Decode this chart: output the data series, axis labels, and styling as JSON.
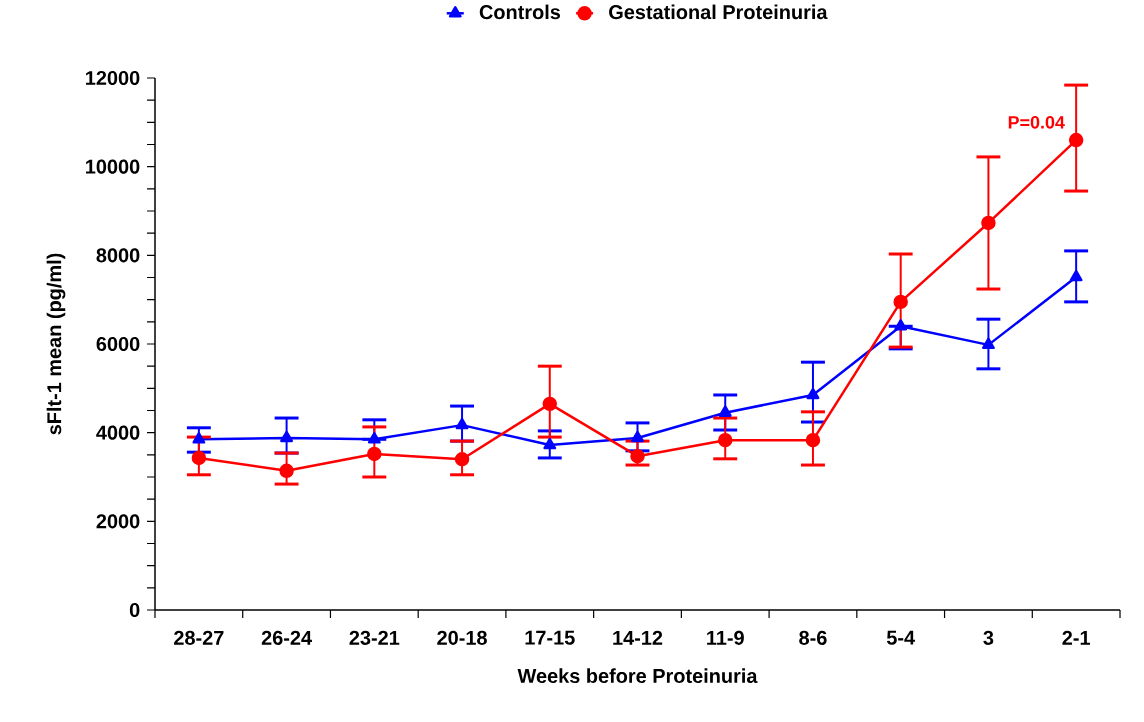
{
  "chart_data": {
    "type": "line",
    "xlabel": "Weeks before Proteinuria",
    "ylabel": "sFlt-1 mean (pg/ml)",
    "categories": [
      "28-27",
      "26-24",
      "23-21",
      "20-18",
      "17-15",
      "14-12",
      "11-9",
      "8-6",
      "5-4",
      "3",
      "2-1"
    ],
    "series": [
      {
        "name": "Controls",
        "color": "#0000ff",
        "marker": "triangle",
        "values": [
          3850,
          3880,
          3850,
          4170,
          3720,
          3880,
          4450,
          4850,
          6400,
          5980,
          7510
        ],
        "errors": [
          [
            3560,
            4110
          ],
          [
            3540,
            4330
          ],
          [
            3850,
            4290
          ],
          [
            3810,
            4600
          ],
          [
            3430,
            4040
          ],
          [
            3590,
            4220
          ],
          [
            4060,
            4850
          ],
          [
            4240,
            5590
          ],
          [
            5890,
            6400
          ],
          [
            5440,
            6560
          ],
          [
            6950,
            8100
          ]
        ]
      },
      {
        "name": "Gestational Proteinuria",
        "color": "#ff0000",
        "marker": "circle",
        "values": [
          3430,
          3140,
          3520,
          3400,
          4650,
          3470,
          3830,
          3830,
          6950,
          8730,
          10600
        ],
        "errors": [
          [
            3050,
            3900
          ],
          [
            2840,
            3540
          ],
          [
            3000,
            4130
          ],
          [
            3050,
            3810
          ],
          [
            3900,
            5500
          ],
          [
            3270,
            3810
          ],
          [
            3410,
            4330
          ],
          [
            3270,
            4470
          ],
          [
            5930,
            8030
          ],
          [
            7240,
            10220
          ],
          [
            9450,
            11840
          ]
        ]
      }
    ],
    "ylim": [
      0,
      12000
    ],
    "yticks": [
      0,
      2000,
      4000,
      6000,
      8000,
      10000,
      12000
    ],
    "grid": false,
    "legend": "top",
    "annotations": [
      {
        "text": "P=0.04",
        "x": "2-1",
        "y": 11000
      }
    ]
  }
}
